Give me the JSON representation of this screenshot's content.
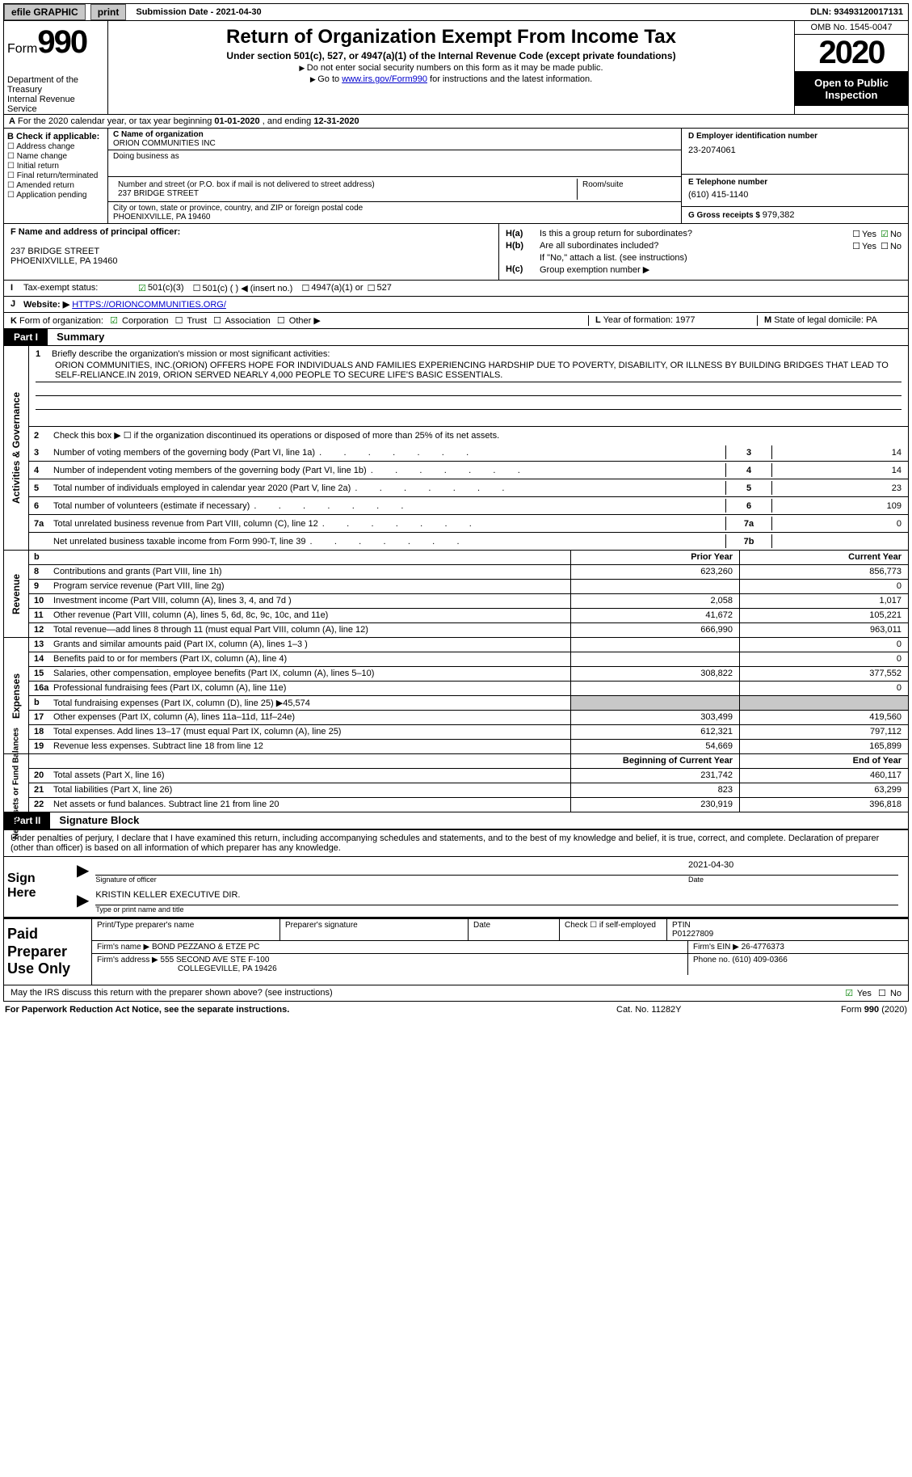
{
  "topbar": {
    "efile": "efile GRAPHIC",
    "print": "print",
    "sub_date_label": "Submission Date - ",
    "sub_date": "2021-04-30",
    "dln_label": "DLN: ",
    "dln": "93493120017131"
  },
  "header": {
    "form_prefix": "Form",
    "form_number": "990",
    "dept": "Department of the Treasury\nInternal Revenue Service",
    "title": "Return of Organization Exempt From Income Tax",
    "sub1": "Under section 501(c), 527, or 4947(a)(1) of the Internal Revenue Code (except private foundations)",
    "sub2": "Do not enter social security numbers on this form as it may be made public.",
    "sub3_pre": "Go to ",
    "sub3_link": "www.irs.gov/Form990",
    "sub3_post": " for instructions and the latest information.",
    "omb": "OMB No. 1545-0047",
    "year": "2020",
    "inspect": "Open to Public Inspection"
  },
  "row_a": {
    "prefix": "A",
    "text": "For the 2020 calendar year, or tax year beginning ",
    "begin": "01-01-2020",
    "mid": " , and ending ",
    "end": "12-31-2020"
  },
  "box_b": {
    "hdr": "B Check if applicable:",
    "items": [
      "Address change",
      "Name change",
      "Initial return",
      "Final return/terminated",
      "Amended return",
      "Application pending"
    ]
  },
  "box_c": {
    "name_lab": "C Name of organization",
    "name": "ORION COMMUNITIES INC",
    "dba_lab": "Doing business as",
    "dba": "",
    "addr_lab": "Number and street (or P.O. box if mail is not delivered to street address)",
    "room_lab": "Room/suite",
    "addr": "237 BRIDGE STREET",
    "city_lab": "City or town, state or province, country, and ZIP or foreign postal code",
    "city": "PHOENIXVILLE, PA  19460"
  },
  "box_de": {
    "d_lab": "D Employer identification number",
    "ein": "23-2074061",
    "e_lab": "E Telephone number",
    "phone": "(610) 415-1140",
    "g_lab": "G Gross receipts $ ",
    "gross": "979,382"
  },
  "box_f": {
    "lab": "F Name and address of principal officer:",
    "addr1": "237 BRIDGE STREET",
    "addr2": "PHOENIXVILLE, PA  19460"
  },
  "box_h": {
    "a_lab": "H(a)",
    "a_txt": "Is this a group return for subordinates?",
    "b_lab": "H(b)",
    "b_txt": "Are all subordinates included?",
    "b_note": "If \"No,\" attach a list. (see instructions)",
    "c_lab": "H(c)",
    "c_txt": "Group exemption number ▶",
    "yes": "Yes",
    "no": "No"
  },
  "row_i": {
    "lab": "I",
    "txt": "Tax-exempt status:",
    "o1": "501(c)(3)",
    "o2": "501(c) (  ) ◀ (insert no.)",
    "o3": "4947(a)(1) or",
    "o4": "527"
  },
  "row_j": {
    "lab": "J",
    "txt": "Website: ▶ ",
    "url": "HTTPS://ORIONCOMMUNITIES.ORG/"
  },
  "row_k": {
    "lab": "K",
    "txt": "Form of organization:",
    "o1": "Corporation",
    "o2": "Trust",
    "o3": "Association",
    "o4": "Other ▶"
  },
  "row_lm": {
    "l_lab": "L",
    "l_txt": "Year of formation: ",
    "l_val": "1977",
    "m_lab": "M",
    "m_txt": "State of legal domicile: ",
    "m_val": "PA"
  },
  "part1": {
    "hdr": "Part I",
    "title": "Summary",
    "line1_lab": "1",
    "line1_txt": "Briefly describe the organization's mission or most significant activities:",
    "mission": "ORION COMMUNITIES, INC.(ORION) OFFERS HOPE FOR INDIVIDUALS AND FAMILIES EXPERIENCING HARDSHIP DUE TO POVERTY, DISABILITY, OR ILLNESS BY BUILDING BRIDGES THAT LEAD TO SELF-RELIANCE.IN 2019, ORION SERVED NEARLY 4,000 PEOPLE TO SECURE LIFE'S BASIC ESSENTIALS.",
    "line2_txt": "Check this box ▶ ☐  if the organization discontinued its operations or disposed of more than 25% of its net assets.",
    "gov_label": "Activities & Governance",
    "rev_label": "Revenue",
    "exp_label": "Expenses",
    "net_label": "Net Assets or Fund Balances",
    "lines_gov": [
      {
        "n": "3",
        "t": "Number of voting members of the governing body (Part VI, line 1a)",
        "box": "3",
        "v": "14"
      },
      {
        "n": "4",
        "t": "Number of independent voting members of the governing body (Part VI, line 1b)",
        "box": "4",
        "v": "14"
      },
      {
        "n": "5",
        "t": "Total number of individuals employed in calendar year 2020 (Part V, line 2a)",
        "box": "5",
        "v": "23"
      },
      {
        "n": "6",
        "t": "Total number of volunteers (estimate if necessary)",
        "box": "6",
        "v": "109"
      },
      {
        "n": "7a",
        "t": "Total unrelated business revenue from Part VIII, column (C), line 12",
        "box": "7a",
        "v": "0"
      },
      {
        "n": "",
        "t": "Net unrelated business taxable income from Form 990-T, line 39",
        "box": "7b",
        "v": ""
      }
    ],
    "py_hdr": "Prior Year",
    "cy_hdr": "Current Year",
    "lines_rev": [
      {
        "n": "8",
        "t": "Contributions and grants (Part VIII, line 1h)",
        "py": "623,260",
        "cy": "856,773"
      },
      {
        "n": "9",
        "t": "Program service revenue (Part VIII, line 2g)",
        "py": "",
        "cy": "0"
      },
      {
        "n": "10",
        "t": "Investment income (Part VIII, column (A), lines 3, 4, and 7d )",
        "py": "2,058",
        "cy": "1,017"
      },
      {
        "n": "11",
        "t": "Other revenue (Part VIII, column (A), lines 5, 6d, 8c, 9c, 10c, and 11e)",
        "py": "41,672",
        "cy": "105,221"
      },
      {
        "n": "12",
        "t": "Total revenue—add lines 8 through 11 (must equal Part VIII, column (A), line 12)",
        "py": "666,990",
        "cy": "963,011"
      }
    ],
    "lines_exp": [
      {
        "n": "13",
        "t": "Grants and similar amounts paid (Part IX, column (A), lines 1–3 )",
        "py": "",
        "cy": "0"
      },
      {
        "n": "14",
        "t": "Benefits paid to or for members (Part IX, column (A), line 4)",
        "py": "",
        "cy": "0"
      },
      {
        "n": "15",
        "t": "Salaries, other compensation, employee benefits (Part IX, column (A), lines 5–10)",
        "py": "308,822",
        "cy": "377,552"
      },
      {
        "n": "16a",
        "t": "Professional fundraising fees (Part IX, column (A), line 11e)",
        "py": "",
        "cy": "0"
      },
      {
        "n": "b",
        "t": "Total fundraising expenses (Part IX, column (D), line 25) ▶45,574",
        "py": "",
        "cy": "",
        "shade": true
      },
      {
        "n": "17",
        "t": "Other expenses (Part IX, column (A), lines 11a–11d, 11f–24e)",
        "py": "303,499",
        "cy": "419,560"
      },
      {
        "n": "18",
        "t": "Total expenses. Add lines 13–17 (must equal Part IX, column (A), line 25)",
        "py": "612,321",
        "cy": "797,112"
      },
      {
        "n": "19",
        "t": "Revenue less expenses. Subtract line 18 from line 12",
        "py": "54,669",
        "cy": "165,899"
      }
    ],
    "boy_hdr": "Beginning of Current Year",
    "eoy_hdr": "End of Year",
    "lines_net": [
      {
        "n": "20",
        "t": "Total assets (Part X, line 16)",
        "py": "231,742",
        "cy": "460,117"
      },
      {
        "n": "21",
        "t": "Total liabilities (Part X, line 26)",
        "py": "823",
        "cy": "63,299"
      },
      {
        "n": "22",
        "t": "Net assets or fund balances. Subtract line 21 from line 20",
        "py": "230,919",
        "cy": "396,818"
      }
    ]
  },
  "part2": {
    "hdr": "Part II",
    "title": "Signature Block",
    "perjury": "Under penalties of perjury, I declare that I have examined this return, including accompanying schedules and statements, and to the best of my knowledge and belief, it is true, correct, and complete. Declaration of preparer (other than officer) is based on all information of which preparer has any knowledge.",
    "sign_here": "Sign Here",
    "sig_date": "2021-04-30",
    "sig_officer_lab": "Signature of officer",
    "sig_date_lab": "Date",
    "officer": "KRISTIN KELLER  EXECUTIVE DIR.",
    "officer_lab": "Type or print name and title",
    "prep_label": "Paid Preparer Use Only",
    "prep_name_lab": "Print/Type preparer's name",
    "prep_sig_lab": "Preparer's signature",
    "prep_date_lab": "Date",
    "prep_check_lab": "Check ☐ if self-employed",
    "ptin_lab": "PTIN",
    "ptin": "P01227809",
    "firm_name_lab": "Firm's name    ▶ ",
    "firm_name": "BOND PEZZANO & ETZE PC",
    "firm_ein_lab": "Firm's EIN ▶ ",
    "firm_ein": "26-4776373",
    "firm_addr_lab": "Firm's address ▶ ",
    "firm_addr1": "555 SECOND AVE STE F-100",
    "firm_addr2": "COLLEGEVILLE, PA  19426",
    "firm_phone_lab": "Phone no. ",
    "firm_phone": "(610) 409-0366"
  },
  "bottom": {
    "discuss": "May the IRS discuss this return with the preparer shown above? (see instructions)",
    "yes": "Yes",
    "no": "No"
  },
  "footer": {
    "l": "For Paperwork Reduction Act Notice, see the separate instructions.",
    "m": "Cat. No. 11282Y",
    "r_pre": "Form ",
    "r_form": "990",
    "r_post": " (2020)"
  }
}
